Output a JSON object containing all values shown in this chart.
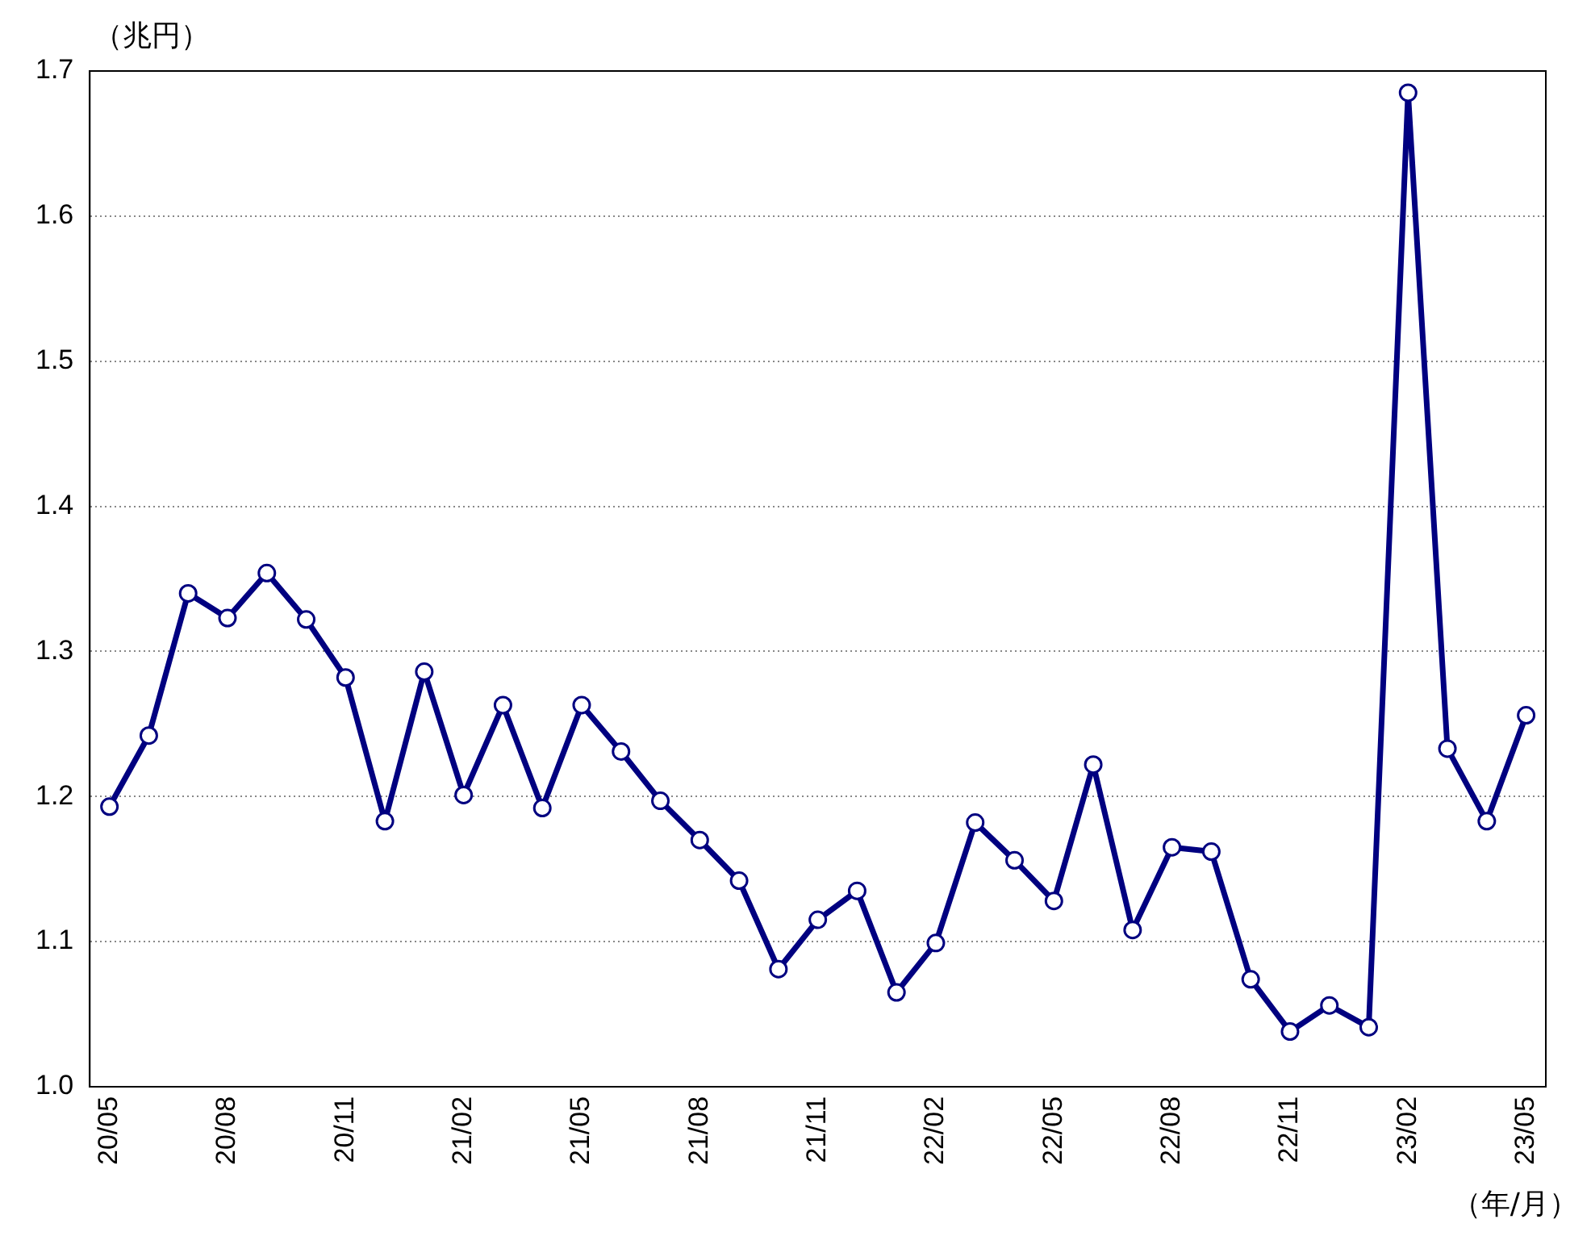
{
  "chart_data": {
    "type": "line",
    "ylabel": "（兆円）",
    "xlabel": "（年/月）",
    "categories": [
      "20/05",
      null,
      null,
      "20/08",
      null,
      null,
      "20/11",
      null,
      null,
      "21/02",
      null,
      null,
      "21/05",
      null,
      null,
      "21/08",
      null,
      null,
      "21/11",
      null,
      null,
      "22/02",
      null,
      null,
      "22/05",
      null,
      null,
      "22/08",
      null,
      null,
      "22/11",
      null,
      null,
      "23/02",
      null,
      null,
      "23/05"
    ],
    "series": [
      {
        "color": "#000080",
        "values": [
          1.193,
          1.242,
          1.34,
          1.323,
          1.354,
          1.322,
          1.282,
          1.183,
          1.286,
          1.201,
          1.263,
          1.192,
          1.263,
          1.231,
          1.197,
          1.17,
          1.142,
          1.081,
          1.115,
          1.135,
          1.065,
          1.099,
          1.182,
          1.156,
          1.128,
          1.222,
          1.108,
          1.165,
          1.162,
          1.074,
          1.038,
          1.056,
          1.041,
          1.685,
          1.233,
          1.183,
          1.256
        ]
      }
    ],
    "ylim": [
      1.0,
      1.7
    ],
    "yticks": [
      {
        "value": 1.0,
        "label": "1.0"
      },
      1.1,
      1.2,
      1.3,
      1.4,
      1.5,
      1.6,
      1.7
    ],
    "grid": "y",
    "legend": false,
    "marker": "circle",
    "line_style": "solid"
  }
}
